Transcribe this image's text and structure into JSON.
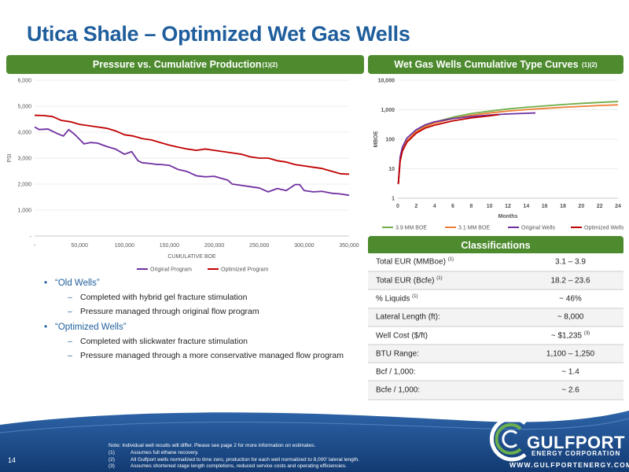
{
  "title": "Utica Shale – Optimized Wet Gas Wells",
  "left_panel": {
    "header": "Pressure vs. Cumulative Production",
    "header_sup": "(1)(2)"
  },
  "right_panel": {
    "header": "Wet Gas Wells Cumulative Type Curves",
    "header_sup": "(1)(2)"
  },
  "classifications_header": "Classifications",
  "pressure_chart": {
    "type": "line",
    "ylabel": "PSI",
    "xlabel": "CUMULATIVE BOE",
    "ylim": [
      0,
      6000
    ],
    "xlim": [
      0,
      350000
    ],
    "y_ticks": [
      "-",
      "1,000",
      "2,000",
      "3,000",
      "4,000",
      "5,000",
      "6,000"
    ],
    "x_ticks": [
      "-",
      "50,000",
      "100,000",
      "150,000",
      "200,000",
      "250,000",
      "300,000",
      "350,000"
    ],
    "legend": [
      "Original Program",
      "Optimized Program"
    ],
    "series": [
      {
        "name": "Original Program",
        "color": "#7030a0",
        "x": [
          0,
          5000,
          15000,
          25000,
          32000,
          38000,
          45000,
          55000,
          62000,
          70000,
          80000,
          90000,
          100000,
          108000,
          115000,
          120000,
          127000,
          135000,
          142000,
          150000,
          160000,
          170000,
          180000,
          190000,
          200000,
          210000,
          215000,
          220000,
          230000,
          240000,
          250000,
          260000,
          270000,
          280000,
          290000,
          295000,
          300000,
          310000,
          320000,
          330000,
          340000,
          350000
        ],
        "y": [
          4200,
          4100,
          4120,
          3950,
          3850,
          4100,
          3900,
          3550,
          3600,
          3580,
          3450,
          3350,
          3150,
          3250,
          2900,
          2820,
          2800,
          2760,
          2750,
          2720,
          2560,
          2480,
          2320,
          2280,
          2300,
          2200,
          2150,
          2000,
          1950,
          1900,
          1850,
          1700,
          1830,
          1750,
          1980,
          1980,
          1750,
          1700,
          1720,
          1650,
          1620,
          1570
        ]
      },
      {
        "name": "Optimized Program",
        "color": "#c00000",
        "x": [
          0,
          10000,
          20000,
          30000,
          40000,
          50000,
          60000,
          70000,
          80000,
          90000,
          100000,
          110000,
          120000,
          130000,
          140000,
          150000,
          160000,
          170000,
          180000,
          190000,
          200000,
          210000,
          220000,
          230000,
          240000,
          250000,
          260000,
          270000,
          280000,
          290000,
          300000,
          310000,
          320000,
          330000,
          340000,
          350000
        ],
        "y": [
          4650,
          4640,
          4600,
          4450,
          4400,
          4300,
          4250,
          4200,
          4150,
          4050,
          3900,
          3850,
          3750,
          3700,
          3600,
          3500,
          3420,
          3350,
          3300,
          3350,
          3300,
          3250,
          3200,
          3150,
          3050,
          3000,
          3000,
          2900,
          2850,
          2750,
          2700,
          2650,
          2600,
          2500,
          2400,
          2380
        ]
      }
    ]
  },
  "type_curve_chart": {
    "type": "line",
    "ylabel": "MBOE",
    "xlabel": "Months",
    "y_scale": "log",
    "ylim": [
      1,
      10000
    ],
    "xlim": [
      0,
      24
    ],
    "y_ticks": [
      "1",
      "10",
      "100",
      "1,000",
      "10,000"
    ],
    "x_ticks": [
      "0",
      "2",
      "4",
      "6",
      "8",
      "10",
      "12",
      "14",
      "16",
      "18",
      "20",
      "22",
      "24"
    ],
    "legend": [
      "3.9 MM BOE",
      "3.1 MM BOE",
      "Original Wells",
      "Optimized Wells"
    ],
    "series": [
      {
        "name": "3.9 MM BOE",
        "color": "#70ad47",
        "x": [
          0.05,
          0.25,
          0.5,
          1,
          2,
          3,
          4,
          6,
          8,
          10,
          12,
          14,
          16,
          18,
          20,
          22,
          24
        ],
        "y": [
          3,
          20,
          45,
          90,
          180,
          280,
          380,
          560,
          740,
          900,
          1060,
          1210,
          1350,
          1500,
          1640,
          1770,
          1900
        ]
      },
      {
        "name": "3.1 MM BOE",
        "color": "#ed7d31",
        "x": [
          0.05,
          0.25,
          0.5,
          1,
          2,
          3,
          4,
          6,
          8,
          10,
          12,
          14,
          16,
          18,
          20,
          22,
          24
        ],
        "y": [
          3,
          20,
          45,
          90,
          180,
          270,
          350,
          500,
          650,
          780,
          900,
          1010,
          1110,
          1210,
          1300,
          1390,
          1470
        ]
      },
      {
        "name": "Original Wells",
        "color": "#7030a0",
        "x": [
          0.05,
          0.25,
          0.5,
          1,
          2,
          3,
          4,
          6,
          8,
          10,
          12,
          14,
          15
        ],
        "y": [
          3,
          25,
          55,
          110,
          210,
          310,
          390,
          500,
          590,
          660,
          720,
          760,
          780
        ]
      },
      {
        "name": "Optimized Wells",
        "color": "#c00000",
        "x": [
          0.05,
          0.25,
          0.5,
          1,
          2,
          3,
          4,
          6,
          8,
          10,
          11
        ],
        "y": [
          3,
          18,
          40,
          80,
          160,
          240,
          300,
          420,
          530,
          620,
          680
        ]
      }
    ]
  },
  "bullets": [
    {
      "text": "“Old Wells”",
      "subs": [
        "Completed with hybrid gel fracture stimulation",
        "Pressure managed through original flow program"
      ]
    },
    {
      "text": "“Optimized Wells”",
      "subs": [
        "Completed with slickwater fracture stimulation",
        "Pressure managed through a more conservative managed flow program"
      ]
    }
  ],
  "classifications": [
    {
      "label": "Total EUR (MMBoe)",
      "sup": "(1)",
      "value": "3.1 – 3.9",
      "value_sup": ""
    },
    {
      "label": "Total EUR (Bcfe)",
      "sup": "(1)",
      "value": "18.2 – 23.6",
      "value_sup": ""
    },
    {
      "label": "% Liquids",
      "sup": "(1)",
      "value": "~ 46%",
      "value_sup": ""
    },
    {
      "label": "Lateral Length (ft):",
      "sup": "",
      "value": "~ 8,000",
      "value_sup": ""
    },
    {
      "label": "Well Cost ($/ft)",
      "sup": "",
      "value": "~ $1,235",
      "value_sup": "(3)"
    },
    {
      "label": "BTU Range:",
      "sup": "",
      "value": "1,100 – 1,250",
      "value_sup": ""
    },
    {
      "label": "Bcf / 1,000:",
      "sup": "",
      "value": "~ 1.4",
      "value_sup": ""
    },
    {
      "label": "Bcfe / 1,000:",
      "sup": "",
      "value": "~ 2.6",
      "value_sup": ""
    }
  ],
  "footer": {
    "slide_number": "14",
    "note": "Note: Individual well results will differ. Please see page 2 for more information on estimates.",
    "footnotes": [
      {
        "num": "(1)",
        "text": "Assumes full ethane recovery."
      },
      {
        "num": "(2)",
        "text": "All Gulfport wells normalized to time zero, production for each well normalized to 8,000' lateral length."
      },
      {
        "num": "(3)",
        "text": "Assumes shortened stage length completions, reduced service costs and operating efficiencies."
      }
    ],
    "logo_name": "GULFPORT",
    "logo_sub": "ENERGY CORPORATION",
    "website": "WWW.GULFPORTENERGY.COM"
  },
  "colors": {
    "title": "#1f5e9c",
    "header_green": "#4e8b2f",
    "footer_blue": "#1f4e8c",
    "original": "#7030a0",
    "optimized": "#c00000",
    "boe39": "#70ad47",
    "boe31": "#ed7d31"
  }
}
